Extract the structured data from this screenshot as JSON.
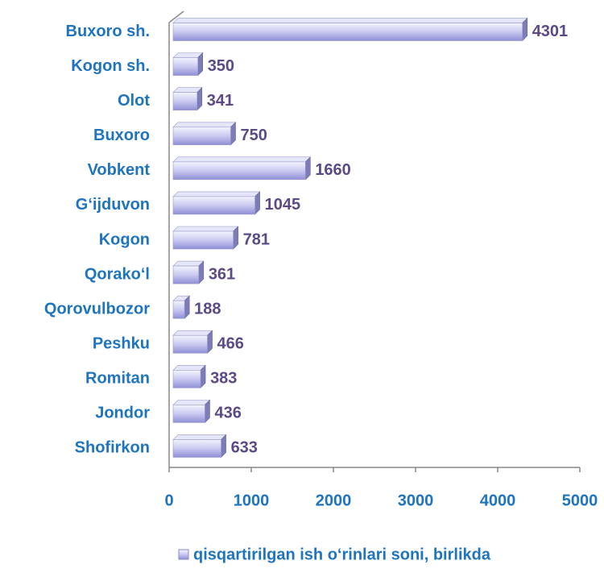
{
  "chart_data": {
    "type": "bar",
    "orientation": "horizontal",
    "categories": [
      "Buxoro sh.",
      "Kogon sh.",
      "Olot",
      "Buxoro",
      "Vobkent",
      "G‘ijduvon",
      "Kogon",
      "Qorako‘l",
      "Qorovulbozor",
      "Peshku",
      "Romitan",
      "Jondor",
      "Shofirkon"
    ],
    "series": [
      {
        "name": "qisqartirilgan ish o‘rinlari soni, birlikda",
        "color": "#9999dd",
        "values": [
          4301,
          350,
          341,
          750,
          1660,
          1045,
          781,
          361,
          188,
          466,
          383,
          436,
          633
        ]
      }
    ],
    "xlim": [
      0,
      5000
    ],
    "xticks": [
      0,
      1000,
      2000,
      3000,
      4000,
      5000
    ],
    "grid": false,
    "legend": "bottom"
  }
}
